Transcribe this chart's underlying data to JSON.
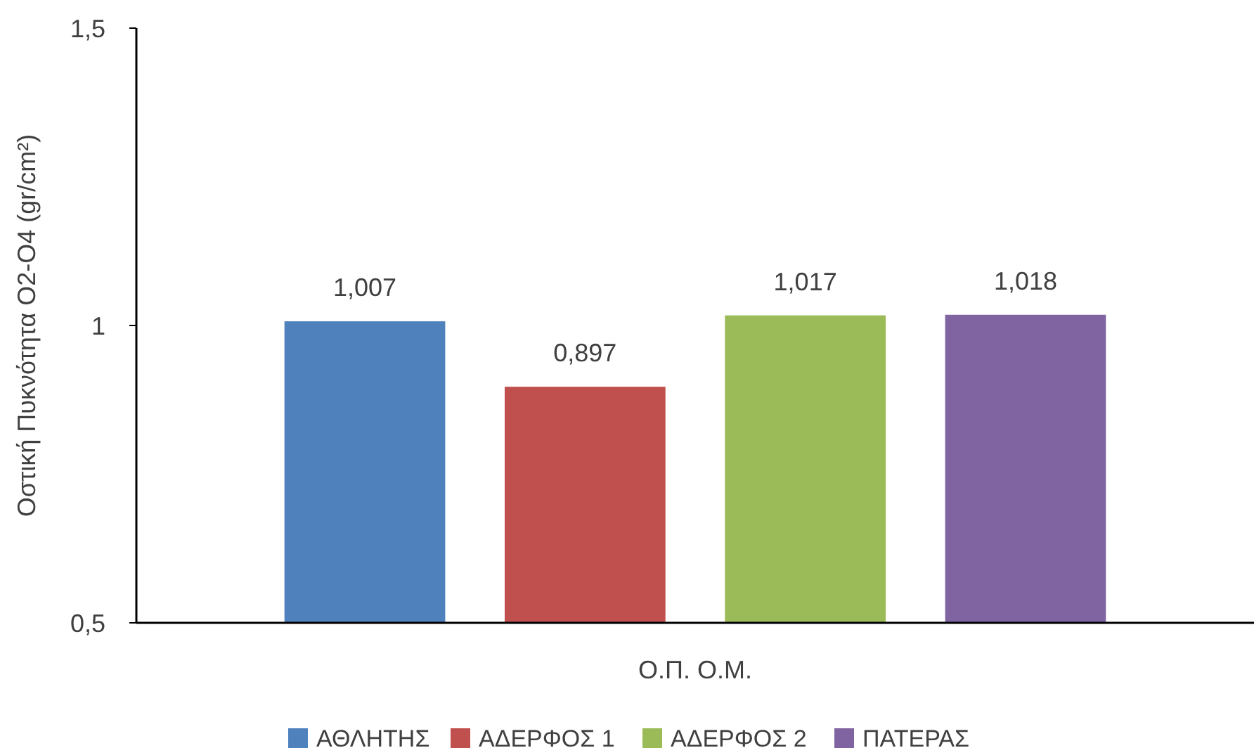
{
  "chart_data": {
    "type": "bar",
    "ylabel": "Οστική Πυκνότητα Ο2-Ο4 (gr/cm²)",
    "categories": [
      "Ο.Π. Ο.Μ."
    ],
    "series": [
      {
        "name": "ΑΘΛΗΤΗΣ",
        "color": "#4f81bd",
        "values": [
          1.007
        ],
        "value_labels": [
          "1,007"
        ]
      },
      {
        "name": "ΑΔΕΡΦΟΣ 1",
        "color": "#c0504d",
        "values": [
          0.897
        ],
        "value_labels": [
          "0,897"
        ]
      },
      {
        "name": "ΑΔΕΡΦΟΣ 2",
        "color": "#9bbb59",
        "values": [
          1.017
        ],
        "value_labels": [
          "1,017"
        ]
      },
      {
        "name": "ΠΑΤΕΡΑΣ",
        "color": "#8064a2",
        "values": [
          1.018
        ],
        "value_labels": [
          "1,018"
        ]
      }
    ],
    "ylim": [
      0.5,
      1.5
    ],
    "yticks": [
      {
        "value": 0.5,
        "label": "0,5"
      },
      1,
      {
        "value": 1.5,
        "label": "1,5"
      }
    ],
    "grid": false,
    "legend": "bottom"
  }
}
